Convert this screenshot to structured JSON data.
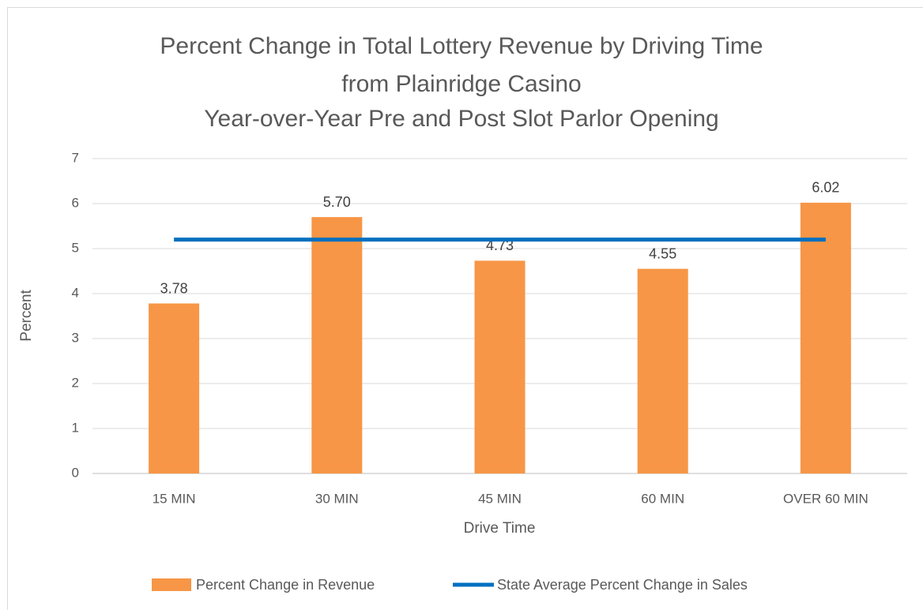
{
  "chart_data": {
    "type": "bar",
    "title": [
      "Percent Change in Total Lottery Revenue by Driving Time",
      "from Plainridge Casino",
      "Year-over-Year Pre and Post Slot Parlor Opening"
    ],
    "x_label": "Drive Time",
    "y_label": "Percent",
    "categories": [
      "15 MIN",
      "30 MIN",
      "45 MIN",
      "60 MIN",
      "OVER 60 MIN"
    ],
    "series": [
      {
        "name": "Percent Change in Revenue",
        "type": "bar",
        "color": "#f79646",
        "values": [
          3.78,
          5.7,
          4.73,
          4.55,
          6.02
        ],
        "value_labels": [
          "3.78",
          "5.70",
          "4.73",
          "4.55",
          "6.02"
        ]
      },
      {
        "name": "State Average Percent Change in Sales",
        "type": "line",
        "color": "#0070c0",
        "values": [
          5.2,
          5.2,
          5.2,
          5.2,
          5.2
        ]
      }
    ],
    "ylim": [
      0,
      7
    ],
    "yticks": [
      0,
      1,
      2,
      3,
      4,
      5,
      6,
      7
    ],
    "grid": true,
    "legend": "bottom"
  }
}
